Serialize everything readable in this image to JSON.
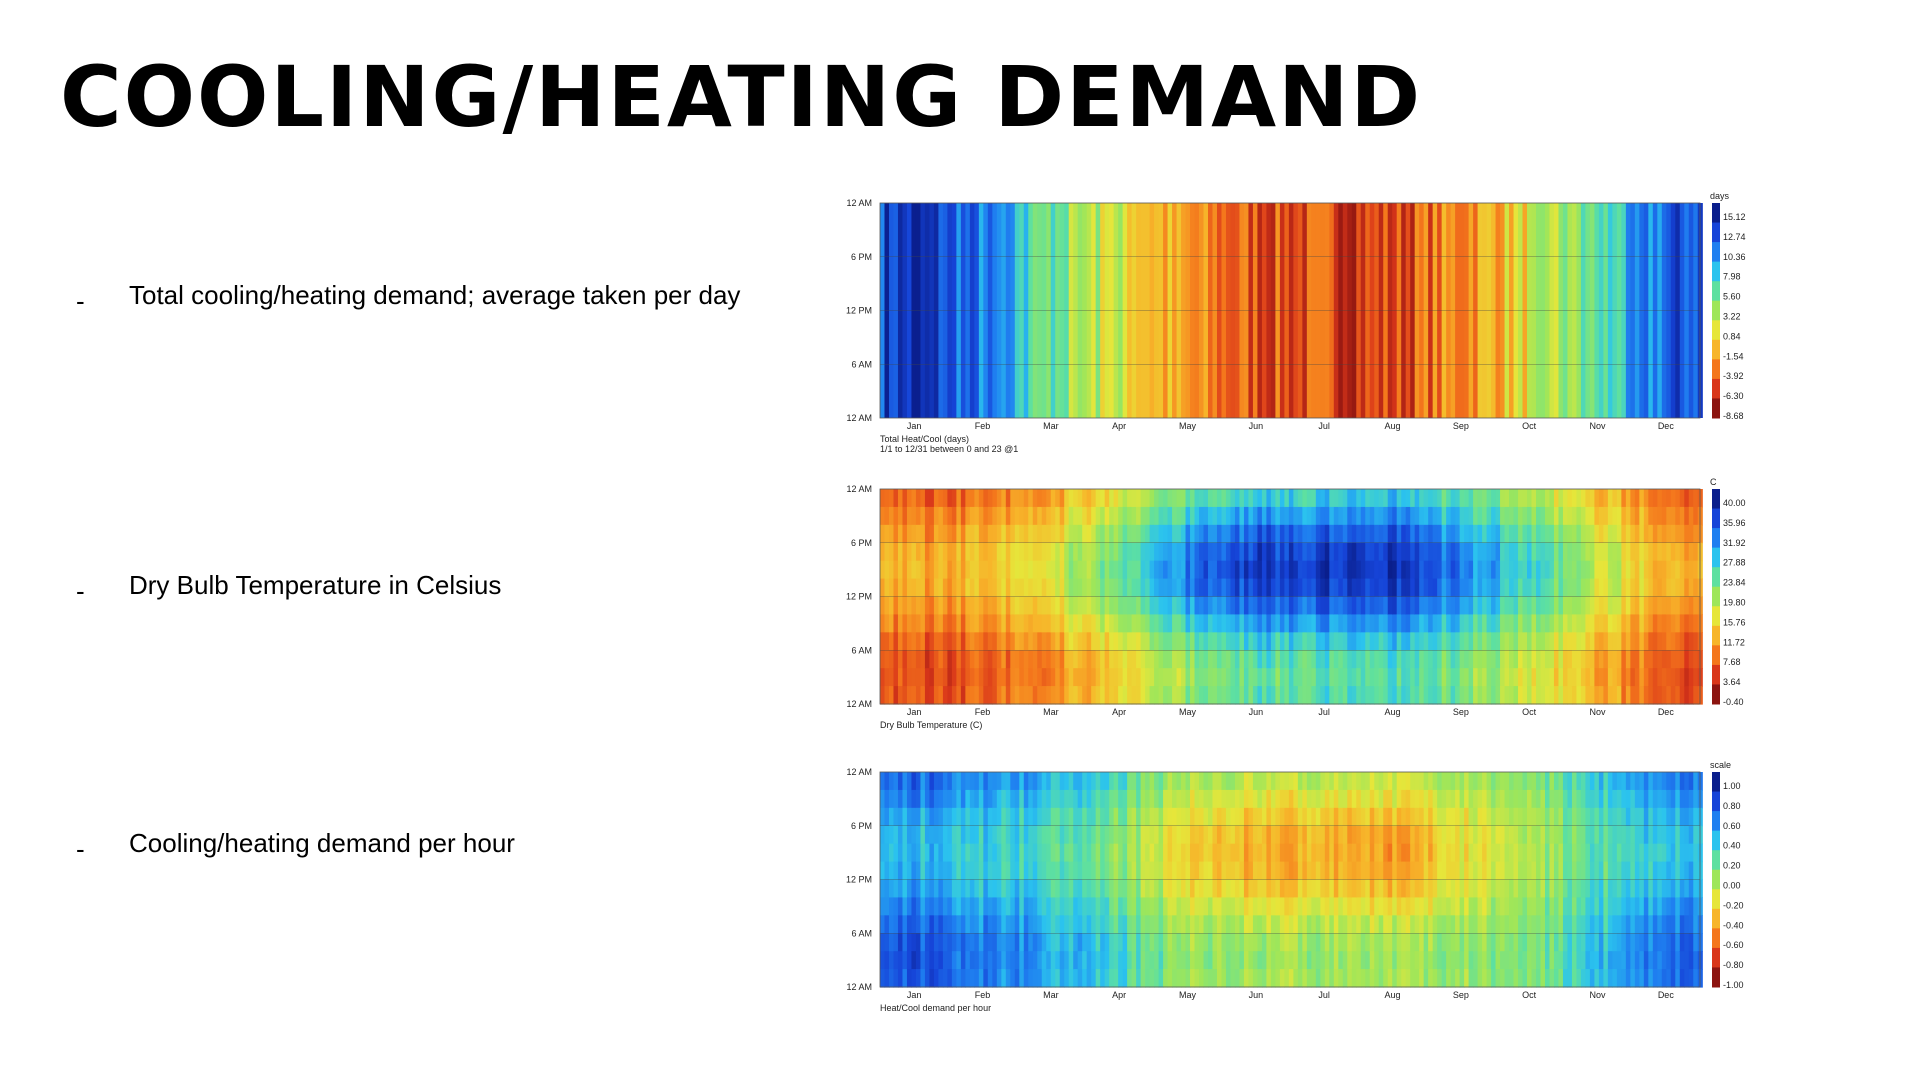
{
  "slide": {
    "title": "COOLING/HEATING DEMAND",
    "bullets": [
      {
        "dash": "-",
        "text": "Total cooling/heating demand; average taken per day"
      },
      {
        "dash": "-",
        "text": "Dry Bulb Temperature in Celsius"
      },
      {
        "dash": "-",
        "text": "Cooling/heating demand per hour"
      }
    ]
  },
  "chart_data": [
    {
      "type": "heatmap",
      "title": "",
      "caption_lines": [
        "Total Heat/Cool (days)",
        "1/1 to 12/31 between 0 and 23 @1"
      ],
      "y_ticks": [
        "12 AM",
        "6 PM",
        "12 PM",
        "6 AM",
        "12 AM"
      ],
      "x_ticks": [
        "Jan",
        "Feb",
        "Mar",
        "Apr",
        "May",
        "Jun",
        "Jul",
        "Aug",
        "Sep",
        "Oct",
        "Nov",
        "Dec"
      ],
      "legend_unit": "days",
      "legend_ticks": [
        "15.12",
        "12.74",
        "10.36",
        "7.98",
        "5.60",
        "3.22",
        "0.84",
        "-1.54",
        "-3.92",
        "-6.30",
        "-8.68"
      ],
      "value_range": [
        -8.68,
        15.12
      ],
      "colormap": [
        "#0a1e8c",
        "#1644d8",
        "#1f7ff0",
        "#2bc3ee",
        "#5ee0a0",
        "#9ee65a",
        "#e6e63a",
        "#f7b52a",
        "#f4761c",
        "#d9361a",
        "#8c1410"
      ],
      "monthly_daily_mean": [
        13.8,
        10.2,
        4.6,
        1.2,
        -3.5,
        -5.2,
        -5.6,
        -5.9,
        -2.8,
        0.6,
        5.4,
        11.5
      ],
      "hourly_variation": false
    },
    {
      "type": "heatmap",
      "title": "",
      "caption_lines": [
        "Dry Bulb Temperature (C)"
      ],
      "y_ticks": [
        "12 AM",
        "6 PM",
        "12 PM",
        "6 AM",
        "12 AM"
      ],
      "x_ticks": [
        "Jan",
        "Feb",
        "Mar",
        "Apr",
        "May",
        "Jun",
        "Jul",
        "Aug",
        "Sep",
        "Oct",
        "Nov",
        "Dec"
      ],
      "legend_unit": "C",
      "legend_ticks": [
        "40.00",
        "35.96",
        "31.92",
        "27.88",
        "23.84",
        "19.80",
        "15.76",
        "11.72",
        "7.68",
        "3.64",
        "-0.40"
      ],
      "value_range": [
        -0.4,
        40.0
      ],
      "colormap": [
        "#0a1e8c",
        "#1644d8",
        "#1f7ff0",
        "#2bc3ee",
        "#5ee0a0",
        "#9ee65a",
        "#e6e63a",
        "#f7b52a",
        "#f4761c",
        "#d9361a",
        "#8c1410"
      ],
      "monthly_night_temp": [
        4.0,
        6.0,
        9.5,
        13.0,
        20.5,
        23.0,
        24.0,
        24.0,
        21.5,
        16.5,
        11.0,
        6.0
      ],
      "monthly_afternoon_temp": [
        11.0,
        13.0,
        17.5,
        22.5,
        33.0,
        37.0,
        37.5,
        37.5,
        32.0,
        26.0,
        18.0,
        12.5
      ],
      "hourly_variation": true
    },
    {
      "type": "heatmap",
      "title": "",
      "caption_lines": [
        "Heat/Cool demand per hour"
      ],
      "y_ticks": [
        "12 AM",
        "6 PM",
        "12 PM",
        "6 AM",
        "12 AM"
      ],
      "x_ticks": [
        "Jan",
        "Feb",
        "Mar",
        "Apr",
        "May",
        "Jun",
        "Jul",
        "Aug",
        "Sep",
        "Oct",
        "Nov",
        "Dec"
      ],
      "legend_unit": "scale",
      "legend_ticks": [
        "1.00",
        "0.80",
        "0.60",
        "0.40",
        "0.20",
        "0.00",
        "-0.20",
        "-0.40",
        "-0.60",
        "-0.80",
        "-1.00"
      ],
      "value_range": [
        -1.0,
        1.0
      ],
      "colormap": [
        "#0a1e8c",
        "#1644d8",
        "#1f7ff0",
        "#2bc3ee",
        "#5ee0a0",
        "#9ee65a",
        "#e6e63a",
        "#f7b52a",
        "#f4761c",
        "#d9361a",
        "#8c1410"
      ],
      "monthly_night_value": [
        0.75,
        0.65,
        0.5,
        0.3,
        0.05,
        0.0,
        0.0,
        0.0,
        0.05,
        0.1,
        0.4,
        0.7
      ],
      "monthly_afternoon_value": [
        0.4,
        0.35,
        0.25,
        0.05,
        -0.3,
        -0.45,
        -0.45,
        -0.5,
        -0.25,
        -0.05,
        0.2,
        0.4
      ],
      "hourly_variation": true
    }
  ]
}
